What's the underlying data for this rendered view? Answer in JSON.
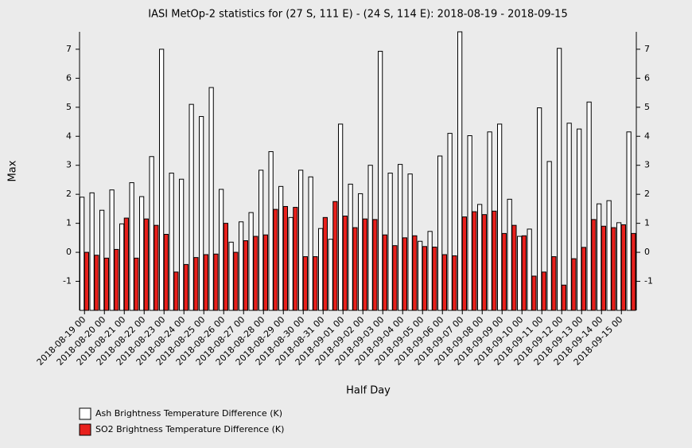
{
  "chart_data": {
    "type": "bar",
    "title": "IASI MetOp-2 statistics for (27 S, 111 E) - (24 S, 114 E): 2018-08-19 - 2018-09-15",
    "x_label": "Half Day",
    "y_label": "Max",
    "categories": [
      "2018-08-19 00",
      null,
      "2018-08-20 00",
      null,
      "2018-08-21 00",
      null,
      "2018-08-22 00",
      null,
      "2018-08-23 00",
      null,
      "2018-08-24 00",
      null,
      "2018-08-25 00",
      null,
      "2018-08-26 00",
      null,
      "2018-08-27 00",
      null,
      "2018-08-28 00",
      null,
      "2018-08-29 00",
      null,
      "2018-08-30 00",
      null,
      "2018-08-31 00",
      null,
      "2018-09-01 00",
      null,
      "2018-09-02 00",
      null,
      "2018-09-03 00",
      null,
      "2018-09-04 00",
      null,
      "2018-09-05 00",
      null,
      "2018-09-06 00",
      null,
      "2018-09-07 00",
      null,
      "2018-09-08 00",
      null,
      "2018-09-09 00",
      null,
      "2018-09-10 00",
      null,
      "2018-09-11 00",
      null,
      "2018-09-12 00",
      null,
      "2018-09-13 00",
      null,
      "2018-09-14 00",
      null,
      "2018-09-15 00",
      null
    ],
    "series": [
      {
        "name": "Ash Brightness Temperature Difference (K)",
        "color": "#ffffff",
        "values": [
          1.9,
          2.05,
          1.45,
          2.15,
          0.98,
          2.4,
          1.92,
          3.3,
          7.0,
          2.73,
          2.52,
          5.1,
          4.68,
          5.68,
          2.17,
          0.35,
          1.05,
          1.37,
          2.83,
          3.47,
          2.27,
          1.2,
          2.83,
          2.6,
          0.82,
          0.45,
          4.42,
          2.35,
          2.02,
          3.0,
          6.93,
          2.73,
          3.03,
          2.7,
          0.38,
          0.72,
          3.32,
          4.1,
          7.6,
          4.02,
          1.65,
          4.15,
          4.42,
          1.83,
          0.55,
          0.8,
          4.98,
          3.13,
          7.03,
          4.45,
          4.25,
          5.18,
          1.67,
          1.78,
          1.02,
          4.15
        ]
      },
      {
        "name": "SO2 Brightness Temperature Difference (K)",
        "color": "#e8201c",
        "values": [
          0.0,
          -0.1,
          -0.2,
          0.1,
          1.18,
          -0.2,
          1.15,
          0.93,
          0.62,
          -0.68,
          -0.42,
          -0.18,
          -0.08,
          -0.06,
          1.0,
          0.0,
          0.4,
          0.55,
          0.6,
          1.48,
          1.58,
          1.55,
          -0.15,
          -0.15,
          1.2,
          1.75,
          1.25,
          0.85,
          1.15,
          1.13,
          0.6,
          0.23,
          0.5,
          0.57,
          0.2,
          0.18,
          -0.08,
          -0.12,
          1.22,
          1.4,
          1.3,
          1.42,
          0.65,
          0.93,
          0.57,
          -0.82,
          -0.68,
          -0.15,
          -1.13,
          -0.22,
          0.17,
          1.13,
          0.9,
          0.85,
          0.95,
          0.65
        ]
      }
    ],
    "ylim": [
      -2,
      7.6
    ],
    "yticks": [
      -1,
      0,
      1,
      2,
      3,
      4,
      5,
      6,
      7
    ]
  }
}
